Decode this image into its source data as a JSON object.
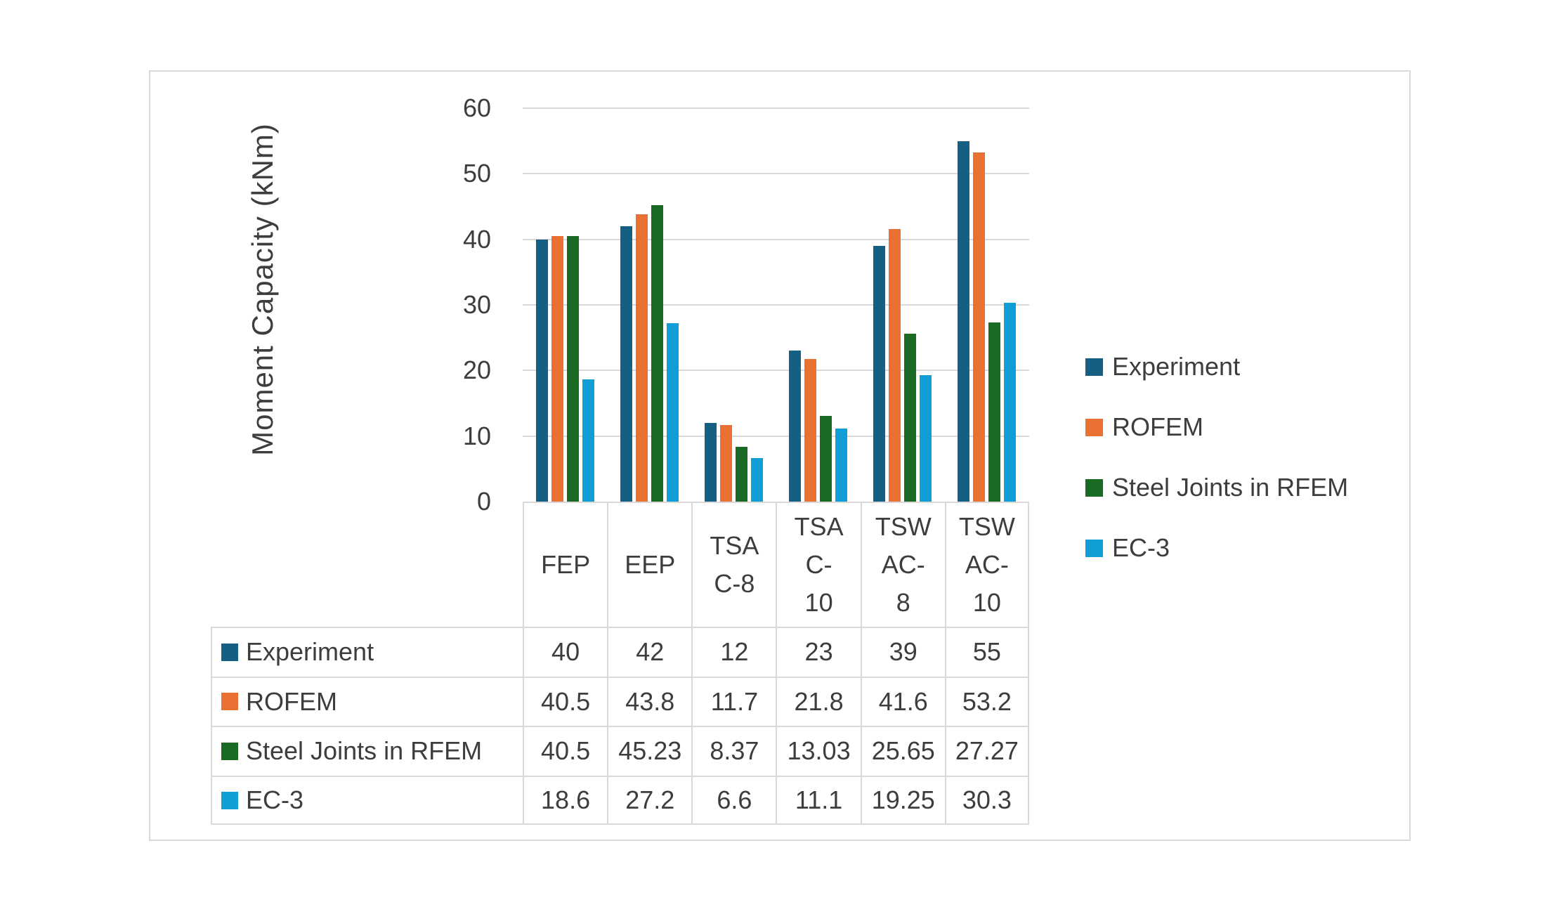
{
  "chart_data": {
    "type": "bar",
    "title": "",
    "xlabel": "",
    "ylabel": "Moment Capacity (kNm)",
    "ylim": [
      0,
      60
    ],
    "yticks": [
      0,
      10,
      20,
      30,
      40,
      50,
      60
    ],
    "grid": true,
    "legend_position": "right",
    "data_table_shown": true,
    "categories": [
      "FEP",
      "EEP",
      "TSA C-8",
      "TSA C-10",
      "TSW AC-8",
      "TSW AC-10"
    ],
    "category_display": [
      "FEP",
      "EEP",
      "TSA\nC-8",
      "TSA\nC-\n10",
      "TSW\nAC-\n8",
      "TSW\nAC-\n10"
    ],
    "series": [
      {
        "name": "Experiment",
        "color": "#156082",
        "values": [
          40,
          42,
          12,
          23,
          39,
          55
        ]
      },
      {
        "name": "ROFEM",
        "color": "#E97132",
        "values": [
          40.5,
          43.8,
          11.7,
          21.8,
          41.6,
          53.2
        ]
      },
      {
        "name": "Steel Joints in RFEM",
        "color": "#196B24",
        "values": [
          40.5,
          45.23,
          8.37,
          13.03,
          25.65,
          27.27
        ]
      },
      {
        "name": "EC-3",
        "color": "#0F9ED5",
        "values": [
          18.6,
          27.2,
          6.6,
          11.1,
          19.25,
          30.3
        ]
      }
    ]
  },
  "styles": {
    "frame_border": "#d9d9d9",
    "grid_color": "#d9d9d9",
    "table_border": "#d9d9d9",
    "text_color": "#3d3d3d",
    "background": "#ffffff"
  }
}
